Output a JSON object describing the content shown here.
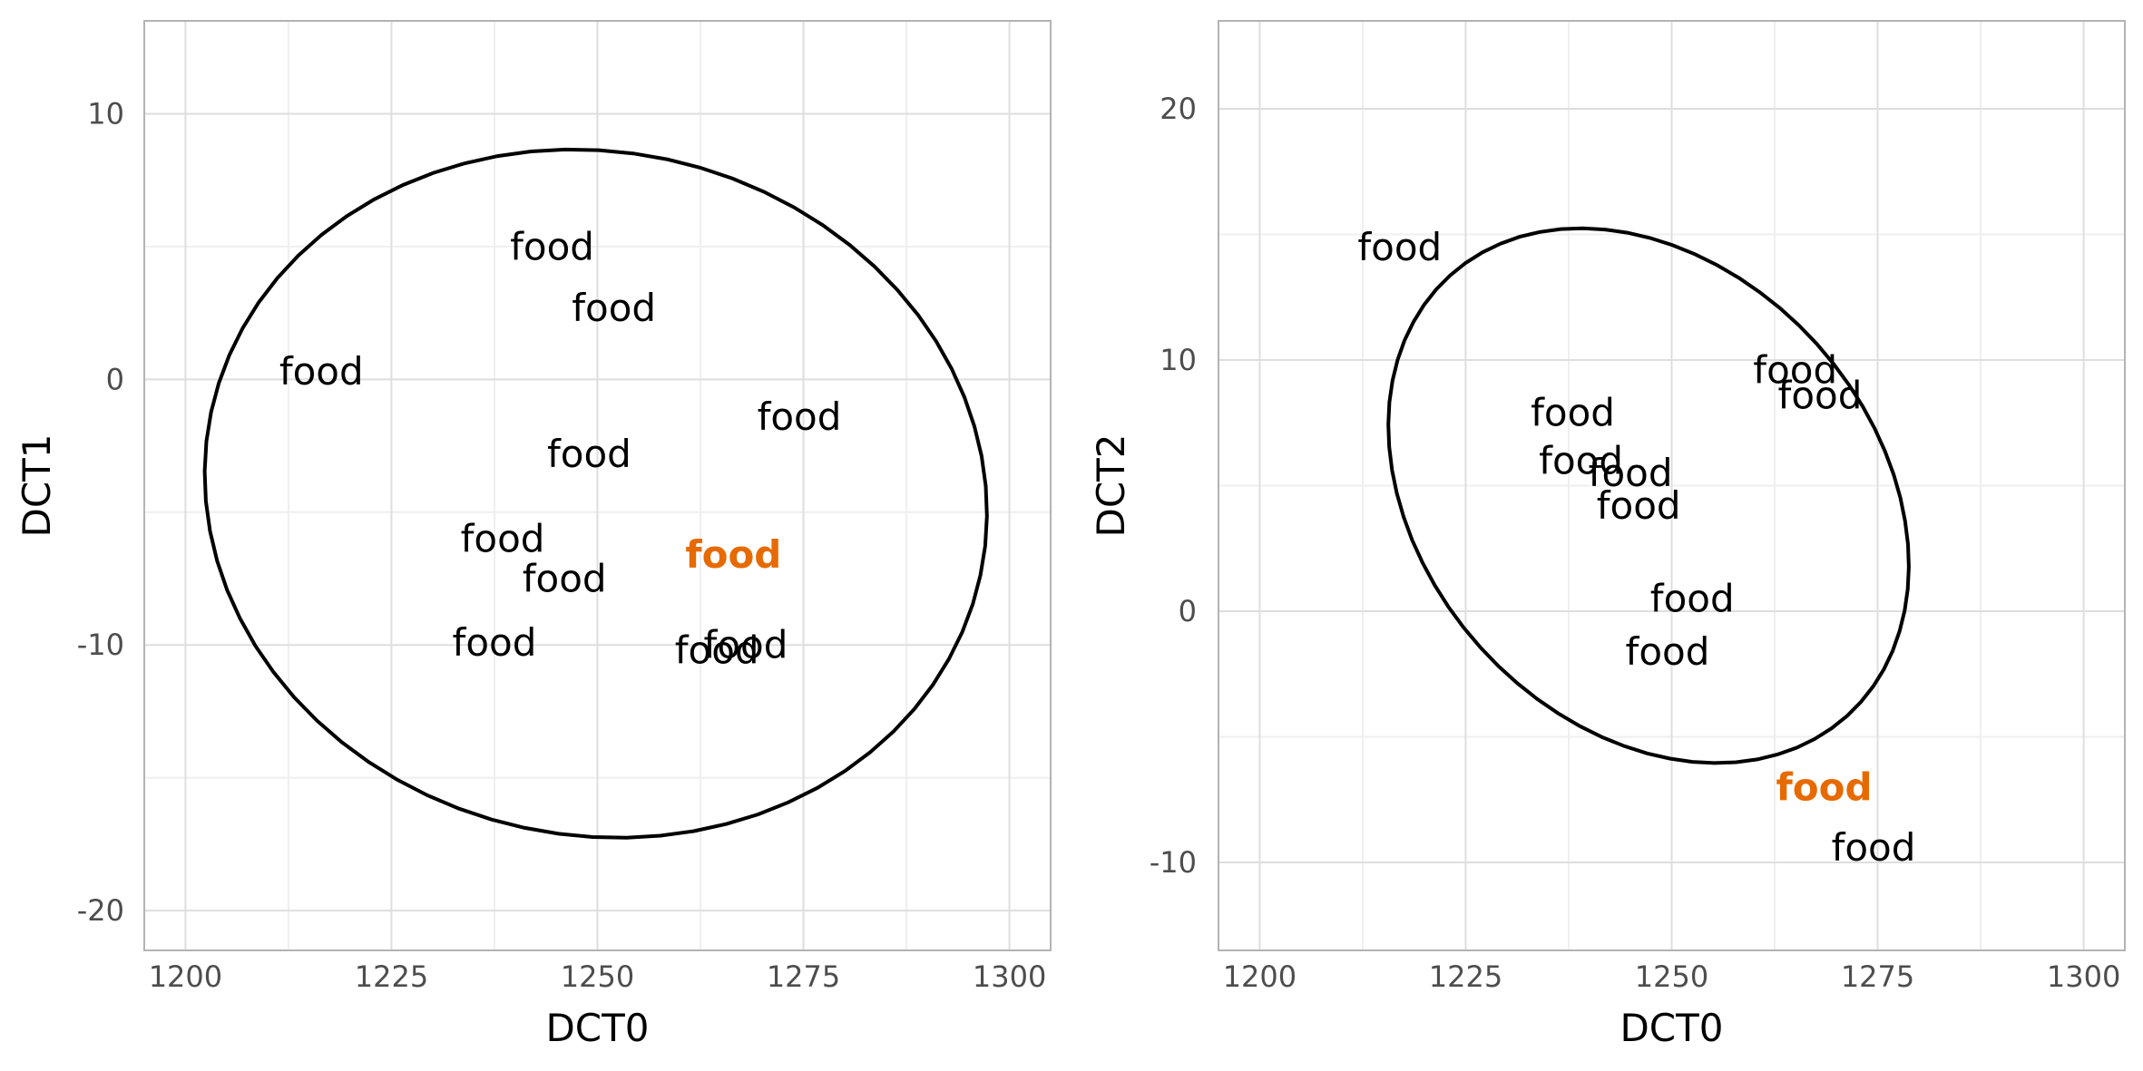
{
  "chart_data": [
    {
      "type": "scatter",
      "title": "",
      "xlabel": "DCT0",
      "ylabel": "DCT1",
      "xlim": [
        1195,
        1305
      ],
      "ylim": [
        -21.5,
        13.5
      ],
      "xticks": [
        1200,
        1225,
        1250,
        1275,
        1300
      ],
      "yticks": [
        10,
        0,
        -10,
        -20
      ],
      "ytick_labels": [
        "10",
        "0",
        "-10",
        "-20"
      ],
      "grid": true,
      "points": [
        {
          "x": 1244.5,
          "y": 5.0,
          "label": "food"
        },
        {
          "x": 1252.0,
          "y": 2.7,
          "label": "food"
        },
        {
          "x": 1216.5,
          "y": 0.3,
          "label": "food"
        },
        {
          "x": 1274.5,
          "y": -1.4,
          "label": "food"
        },
        {
          "x": 1249.0,
          "y": -2.8,
          "label": "food"
        },
        {
          "x": 1238.5,
          "y": -6.0,
          "label": "food"
        },
        {
          "x": 1266.5,
          "y": -6.6,
          "label": "food",
          "highlight": true
        },
        {
          "x": 1246.0,
          "y": -7.5,
          "label": "food"
        },
        {
          "x": 1237.5,
          "y": -9.9,
          "label": "food"
        },
        {
          "x": 1268.0,
          "y": -10.0,
          "label": "food"
        },
        {
          "x": 1264.5,
          "y": -10.2,
          "label": "food"
        }
      ],
      "ellipse": {
        "cx": 1249.8,
        "cy": -4.3,
        "rx": 41.5,
        "ry": 14.8,
        "angle_deg": -78
      }
    },
    {
      "type": "scatter",
      "title": "",
      "xlabel": "DCT0",
      "ylabel": "DCT2",
      "xlim": [
        1195,
        1305
      ],
      "ylim": [
        -13.5,
        23.5
      ],
      "xticks": [
        1200,
        1225,
        1250,
        1275,
        1300
      ],
      "yticks": [
        20,
        10,
        0,
        -10
      ],
      "ytick_labels": [
        "20",
        "10",
        "0",
        "-10"
      ],
      "grid": true,
      "points": [
        {
          "x": 1217.0,
          "y": 14.5,
          "label": "food"
        },
        {
          "x": 1265.0,
          "y": 9.6,
          "label": "food"
        },
        {
          "x": 1268.0,
          "y": 8.6,
          "label": "food"
        },
        {
          "x": 1238.0,
          "y": 7.9,
          "label": "food"
        },
        {
          "x": 1239.0,
          "y": 6.0,
          "label": "food"
        },
        {
          "x": 1245.0,
          "y": 5.5,
          "label": "food"
        },
        {
          "x": 1246.0,
          "y": 4.2,
          "label": "food"
        },
        {
          "x": 1252.5,
          "y": 0.5,
          "label": "food"
        },
        {
          "x": 1249.5,
          "y": -1.6,
          "label": "food"
        },
        {
          "x": 1268.5,
          "y": -7.0,
          "label": "food",
          "highlight": true
        },
        {
          "x": 1274.5,
          "y": -9.4,
          "label": "food"
        }
      ],
      "ellipse": {
        "cx": 1247.2,
        "cy": 4.6,
        "rx": 27.5,
        "ry": 11.8,
        "angle_deg": -42
      }
    }
  ],
  "colors": {
    "text": "#000000",
    "highlight": "#e66a00",
    "grid_major": "#dedede",
    "grid_minor": "#efefef",
    "panel_border": "#b3b3b3",
    "tick_label": "#4d4d4d"
  }
}
